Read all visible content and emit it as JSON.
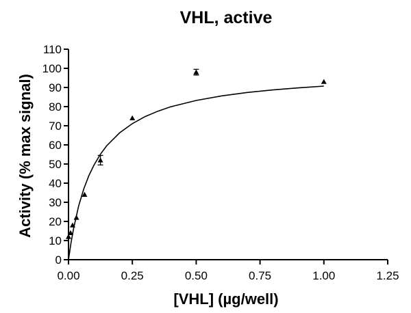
{
  "chart_data": {
    "type": "scatter",
    "title": "VHL, active",
    "xlabel": "[VHL] (µg/well)",
    "ylabel": "Activity (% max signal)",
    "xlim": [
      0,
      1.25
    ],
    "ylim": [
      0,
      110
    ],
    "x_ticks": [
      "0.00",
      "0.25",
      "0.50",
      "0.75",
      "1.00",
      "1.25"
    ],
    "y_ticks": [
      "0",
      "10",
      "20",
      "30",
      "40",
      "50",
      "60",
      "70",
      "80",
      "90",
      "100",
      "110"
    ],
    "grid": false,
    "legend": "none",
    "marker": "triangle",
    "series": [
      {
        "x": [
          0.0,
          0.008,
          0.016,
          0.031,
          0.063,
          0.125,
          0.25,
          0.5,
          1.0
        ],
        "y": [
          12,
          14,
          18,
          22,
          34,
          52,
          74,
          98,
          93
        ],
        "error": [
          0,
          0,
          0,
          0,
          0,
          2.5,
          0,
          1.5,
          0
        ]
      }
    ],
    "fit_curve": {
      "x": [
        0.0,
        0.01,
        0.02,
        0.04,
        0.06,
        0.08,
        0.1,
        0.125,
        0.15,
        0.2,
        0.25,
        0.3,
        0.35,
        0.4,
        0.5,
        0.6,
        0.7,
        0.8,
        0.9,
        1.0
      ],
      "y": [
        0,
        8.9,
        16.4,
        28.2,
        37.1,
        44.0,
        49.5,
        55.1,
        59.6,
        66.3,
        71.1,
        74.8,
        77.6,
        79.9,
        83.2,
        85.6,
        87.4,
        88.7,
        89.8,
        90.7
      ]
    }
  }
}
